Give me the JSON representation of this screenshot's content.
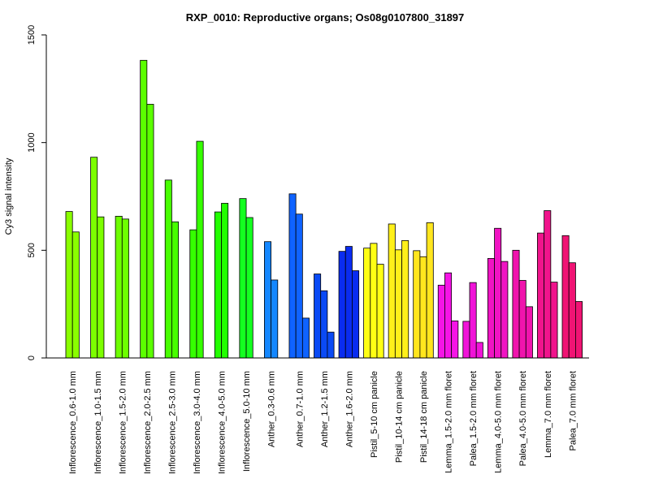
{
  "chart_data": {
    "type": "bar",
    "title": "RXP_0010: Reproductive organs; Os08g0107800_31897",
    "ylabel": "Cy3 signal intensity",
    "xlabel": "",
    "ylim": [
      0,
      1500
    ],
    "yticks": [
      0,
      500,
      1000,
      1500
    ],
    "grid": false,
    "legend": "none",
    "groups": [
      {
        "label": "Inflorescence_0.6-1.0 mm",
        "color": "#8AFF00",
        "values": [
          680,
          585
        ]
      },
      {
        "label": "Inflorescence_1.0-1.5 mm",
        "color": "#7CFF00",
        "values": [
          932,
          655
        ]
      },
      {
        "label": "Inflorescence_1.5-2.0 mm",
        "color": "#6DFF00",
        "values": [
          658,
          645
        ]
      },
      {
        "label": "Inflorescence_2.0-2.5 mm",
        "color": "#5BFF00",
        "values": [
          1382,
          1178
        ]
      },
      {
        "label": "Inflorescence_2.5-3.0 mm",
        "color": "#47FF00",
        "values": [
          826,
          632
        ]
      },
      {
        "label": "Inflorescence_3.0-4.0 mm",
        "color": "#35FF00",
        "values": [
          595,
          1006
        ]
      },
      {
        "label": "Inflorescence_4.0-5.0 mm",
        "color": "#22FF00",
        "values": [
          678,
          718
        ]
      },
      {
        "label": "Inflorescence_5.0-10 mm",
        "color": "#14FF20",
        "values": [
          740,
          652
        ]
      },
      {
        "label": "Anther_0.3-0.6 mm",
        "color": "#1487FF",
        "values": [
          540,
          362
        ]
      },
      {
        "label": "Anther_0.7-1.0 mm",
        "color": "#0F63FF",
        "values": [
          762,
          668,
          185
        ]
      },
      {
        "label": "Anther_1.2-1.5 mm",
        "color": "#0A4AF5",
        "values": [
          390,
          312,
          120
        ]
      },
      {
        "label": "Anther_1.6-2.0 mm",
        "color": "#0A2CF0",
        "values": [
          495,
          518,
          405
        ]
      },
      {
        "label": "Pistil_5-10 cm panicle",
        "color": "#FFFF14",
        "values": [
          510,
          532,
          435
        ]
      },
      {
        "label": "Pistil_10-14 cm panicle",
        "color": "#FFF01A",
        "values": [
          622,
          502,
          545
        ]
      },
      {
        "label": "Pistil_14-18 cm panicle",
        "color": "#FFE61E",
        "values": [
          498,
          470,
          628
        ]
      },
      {
        "label": "Lemma_1.5-2.0 mm floret",
        "color": "#F514E6",
        "values": [
          338,
          395,
          172
        ]
      },
      {
        "label": "Palea_1.5-2.0 mm floret",
        "color": "#F014D8",
        "values": [
          170,
          350,
          72
        ]
      },
      {
        "label": "Lemma_4.0-5.0 mm floret",
        "color": "#F014C3",
        "values": [
          462,
          602,
          448
        ]
      },
      {
        "label": "Palea_4.0-5.0 mm floret",
        "color": "#F014AD",
        "values": [
          500,
          360,
          238
        ]
      },
      {
        "label": "Lemma_7.0 mm floret",
        "color": "#F0148C",
        "values": [
          580,
          684,
          352
        ]
      },
      {
        "label": "Palea_7.0 mm floret",
        "color": "#F01474",
        "values": [
          568,
          442,
          262
        ]
      }
    ]
  }
}
